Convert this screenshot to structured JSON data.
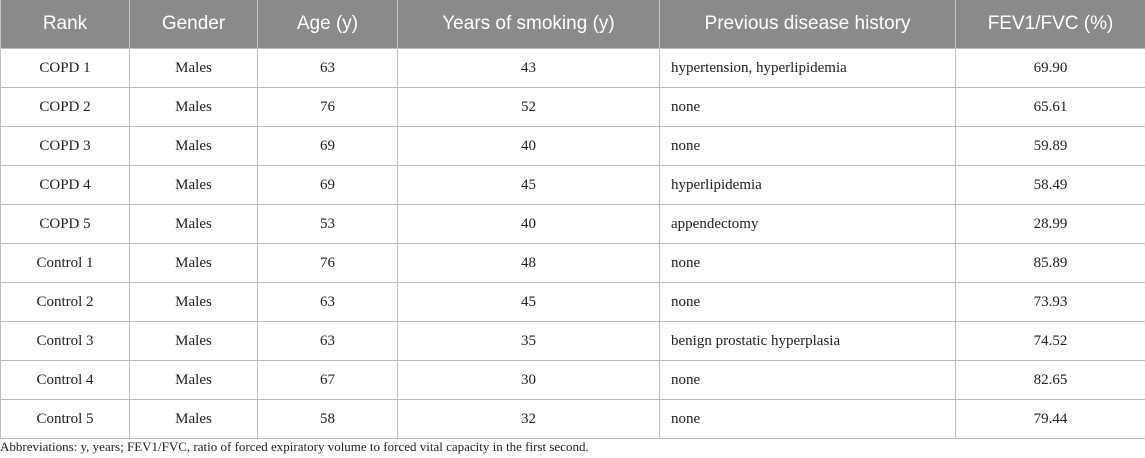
{
  "table": {
    "headers": [
      "Rank",
      "Gender",
      "Age (y)",
      "Years of smoking (y)",
      "Previous disease history",
      "FEV1/FVC (%)"
    ],
    "rows": [
      [
        "COPD 1",
        "Males",
        "63",
        "43",
        "hypertension, hyperlipidemia",
        "69.90"
      ],
      [
        "COPD 2",
        "Males",
        "76",
        "52",
        "none",
        "65.61"
      ],
      [
        "COPD 3",
        "Males",
        "69",
        "40",
        "none",
        "59.89"
      ],
      [
        "COPD 4",
        "Males",
        "69",
        "45",
        "hyperlipidemia",
        "58.49"
      ],
      [
        "COPD 5",
        "Males",
        "53",
        "40",
        "appendectomy",
        "28.99"
      ],
      [
        "Control 1",
        "Males",
        "76",
        "48",
        "none",
        "85.89"
      ],
      [
        "Control 2",
        "Males",
        "63",
        "45",
        "none",
        "73.93"
      ],
      [
        "Control 3",
        "Males",
        "63",
        "35",
        "benign prostatic hyperplasia",
        "74.52"
      ],
      [
        "Control 4",
        "Males",
        "67",
        "30",
        "none",
        "82.65"
      ],
      [
        "Control 5",
        "Males",
        "58",
        "32",
        "none",
        "79.44"
      ]
    ]
  },
  "footnote": "Abbreviations: y, years; FEV1/FVC, ratio of forced expiratory volume to forced vital capacity in the first second."
}
